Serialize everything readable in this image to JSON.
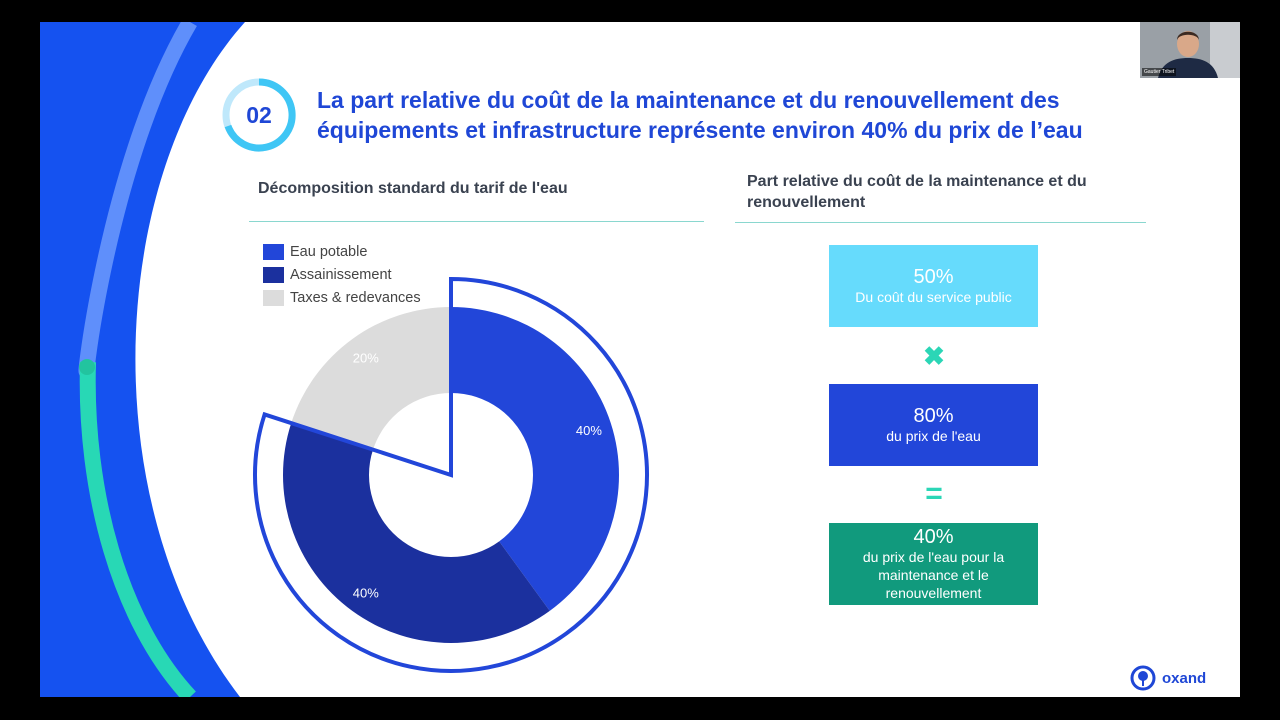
{
  "step": "02",
  "title": "La part relative du coût de la maintenance et du renouvellement des équipements et infrastructure représente environ 40% du prix de l’eau",
  "left_section": {
    "heading": "Décomposition standard du tarif de l'eau"
  },
  "right_section": {
    "heading": "Part relative du coût de la maintenance et du renouvellement"
  },
  "chart_data": {
    "type": "pie",
    "series": [
      {
        "name": "Eau potable",
        "value": 40,
        "label": "40%",
        "color": "#2246d9"
      },
      {
        "name": "Assainissement",
        "value": 40,
        "label": "40%",
        "color": "#1b309e"
      },
      {
        "name": "Taxes & redevances",
        "value": 20,
        "label": "20%",
        "color": "#dcdcdc"
      }
    ],
    "legend_position": "top-left",
    "highlight_color": "#2246d9"
  },
  "boxes": [
    {
      "big": "50%",
      "small": "Du coût du service public",
      "color": "#66dbfc"
    },
    {
      "big": "80%",
      "small": "du prix de l'eau",
      "color": "#2246d9"
    },
    {
      "big": "40%",
      "small": "du prix de l'eau pour la maintenance et le renouvellement",
      "color": "#119a7d"
    }
  ],
  "operators": {
    "multiply": "✖",
    "equals": "="
  },
  "brand": {
    "name": "oxand",
    "icon": "oxand-logo-icon"
  },
  "webcam": {
    "participant_name": "Gautier Tribet"
  },
  "colors": {
    "accent": "#1f47d6",
    "teal": "#2bd6b6",
    "rule": "#8ad7cf"
  }
}
